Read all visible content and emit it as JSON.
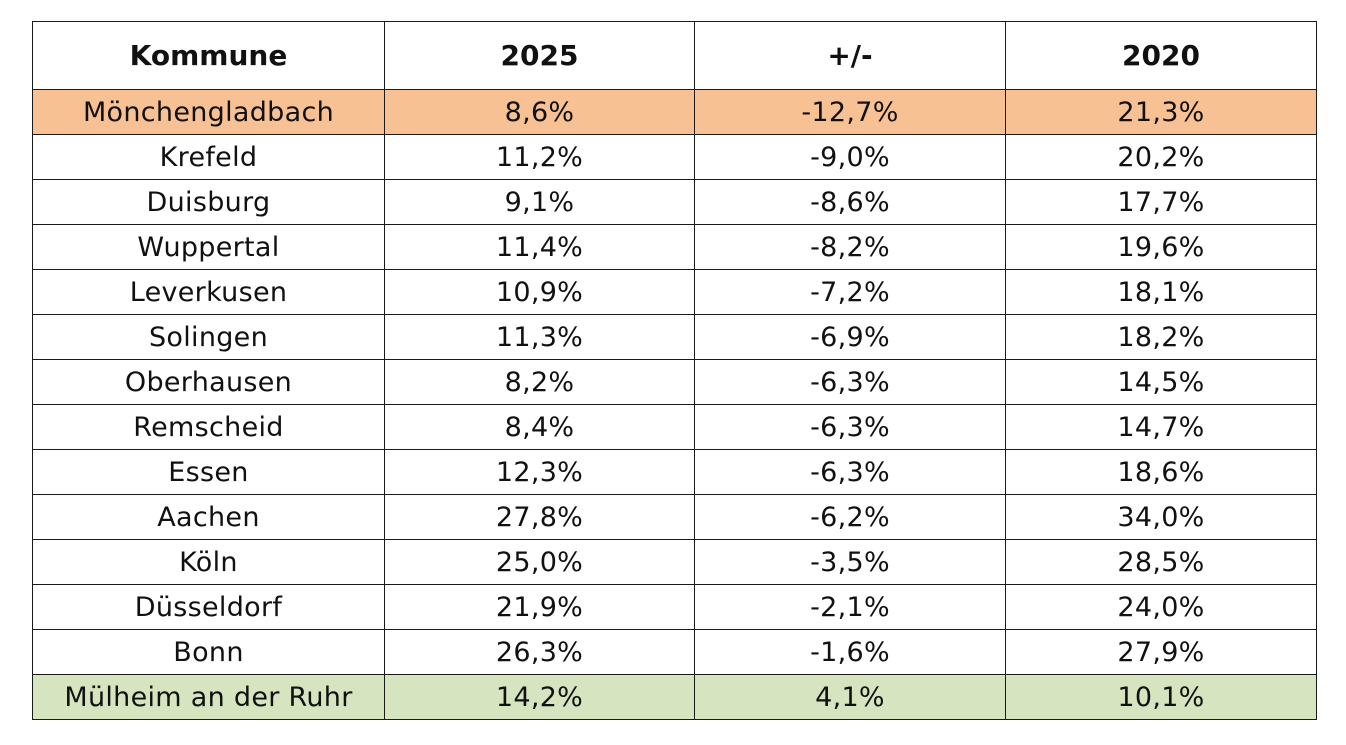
{
  "table": {
    "headers": [
      "Kommune",
      "2025",
      "+/-",
      "2020"
    ],
    "rows": [
      {
        "kommune": "Mönchengladbach",
        "y2025": "8,6%",
        "diff": "-12,7%",
        "y2020": "21,3%",
        "highlight": "orange"
      },
      {
        "kommune": "Krefeld",
        "y2025": "11,2%",
        "diff": "-9,0%",
        "y2020": "20,2%",
        "highlight": ""
      },
      {
        "kommune": "Duisburg",
        "y2025": "9,1%",
        "diff": "-8,6%",
        "y2020": "17,7%",
        "highlight": ""
      },
      {
        "kommune": "Wuppertal",
        "y2025": "11,4%",
        "diff": "-8,2%",
        "y2020": "19,6%",
        "highlight": ""
      },
      {
        "kommune": "Leverkusen",
        "y2025": "10,9%",
        "diff": "-7,2%",
        "y2020": "18,1%",
        "highlight": ""
      },
      {
        "kommune": "Solingen",
        "y2025": "11,3%",
        "diff": "-6,9%",
        "y2020": "18,2%",
        "highlight": ""
      },
      {
        "kommune": "Oberhausen",
        "y2025": "8,2%",
        "diff": "-6,3%",
        "y2020": "14,5%",
        "highlight": ""
      },
      {
        "kommune": "Remscheid",
        "y2025": "8,4%",
        "diff": "-6,3%",
        "y2020": "14,7%",
        "highlight": ""
      },
      {
        "kommune": "Essen",
        "y2025": "12,3%",
        "diff": "-6,3%",
        "y2020": "18,6%",
        "highlight": ""
      },
      {
        "kommune": "Aachen",
        "y2025": "27,8%",
        "diff": "-6,2%",
        "y2020": "34,0%",
        "highlight": ""
      },
      {
        "kommune": "Köln",
        "y2025": "25,0%",
        "diff": "-3,5%",
        "y2020": "28,5%",
        "highlight": ""
      },
      {
        "kommune": "Düsseldorf",
        "y2025": "21,9%",
        "diff": "-2,1%",
        "y2020": "24,0%",
        "highlight": ""
      },
      {
        "kommune": "Bonn",
        "y2025": "26,3%",
        "diff": "-1,6%",
        "y2020": "27,9%",
        "highlight": ""
      },
      {
        "kommune": "Mülheim an der Ruhr",
        "y2025": "14,2%",
        "diff": "4,1%",
        "y2020": "10,1%",
        "highlight": "green"
      }
    ]
  },
  "colors": {
    "highlight_orange": "#f8c193",
    "highlight_green": "#d6e4bf",
    "border": "#1a1a1a"
  }
}
